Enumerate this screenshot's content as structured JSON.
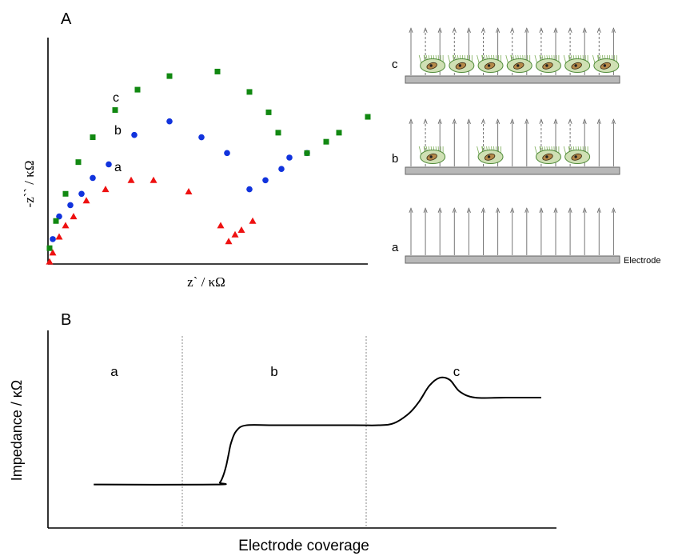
{
  "panel_a": {
    "label": "A",
    "xlabel": "z` / κΩ",
    "ylabel": "-z`` / κΩ",
    "curve_labels": {
      "a": "a",
      "b": "b",
      "c": "c"
    },
    "colors": {
      "a": "#ee1111",
      "b": "#1133dd",
      "c": "#118811"
    }
  },
  "schematic": {
    "rows": [
      {
        "key": "c",
        "label": "c"
      },
      {
        "key": "b",
        "label": "b"
      },
      {
        "key": "a",
        "label": "a"
      }
    ],
    "electrode_label": "Electrode"
  },
  "panel_b": {
    "label": "B",
    "ylabel": "Impedance / κΩ",
    "xlabel": "Electrode coverage",
    "region_labels": [
      "a",
      "b",
      "c"
    ]
  },
  "chart_data": [
    {
      "type": "scatter",
      "title": "A",
      "xlabel": "z` / κΩ",
      "ylabel": "-z`` / κΩ",
      "xlim": [
        0,
        100
      ],
      "ylim": [
        0,
        100
      ],
      "series": [
        {
          "name": "a",
          "marker": "triangle",
          "color": "#ee1111",
          "x": [
            0.5,
            1.5,
            3.5,
            5.5,
            8,
            12,
            18,
            26,
            33,
            44,
            54,
            56.5,
            58.5,
            60.5,
            64
          ],
          "y": [
            1,
            5,
            12,
            17,
            21,
            28,
            33,
            37,
            37,
            32,
            17,
            10,
            13,
            15,
            19
          ]
        },
        {
          "name": "b",
          "marker": "circle",
          "color": "#1133dd",
          "x": [
            1.5,
            3.5,
            7,
            10.5,
            14,
            19,
            27,
            38,
            48,
            56,
            63,
            68,
            73,
            75.5,
            81
          ],
          "y": [
            11,
            21,
            26,
            31,
            38,
            44,
            57,
            63,
            56,
            49,
            33,
            37,
            42,
            47,
            49
          ]
        },
        {
          "name": "c",
          "marker": "square",
          "color": "#118811",
          "x": [
            0.5,
            2.5,
            5.5,
            9.5,
            14,
            21,
            28,
            38,
            53,
            63,
            69,
            72,
            81,
            87,
            91,
            100
          ],
          "y": [
            7,
            19,
            31,
            45,
            56,
            68,
            77,
            83,
            85,
            76,
            67,
            58,
            49,
            54,
            58,
            65
          ]
        }
      ]
    },
    {
      "type": "line",
      "title": "B",
      "xlabel": "Electrode coverage",
      "ylabel": "Impedance / κΩ",
      "xlim": [
        0,
        100
      ],
      "ylim": [
        0,
        100
      ],
      "regions": [
        "a",
        "b",
        "c"
      ],
      "region_boundaries": [
        29,
        66
      ],
      "series": [
        {
          "name": "",
          "x": [
            9,
            33,
            33.8,
            34.4,
            35,
            35.5,
            36,
            37,
            39,
            45,
            60,
            65,
            68,
            71,
            73,
            75,
            77,
            79,
            81,
            84,
            90,
            97
          ],
          "y": [
            22,
            22,
            23,
            26,
            31,
            37,
            43,
            49,
            52,
            52,
            52,
            52,
            53,
            58,
            64,
            72,
            76,
            75,
            69,
            66,
            66,
            66
          ]
        }
      ]
    }
  ]
}
